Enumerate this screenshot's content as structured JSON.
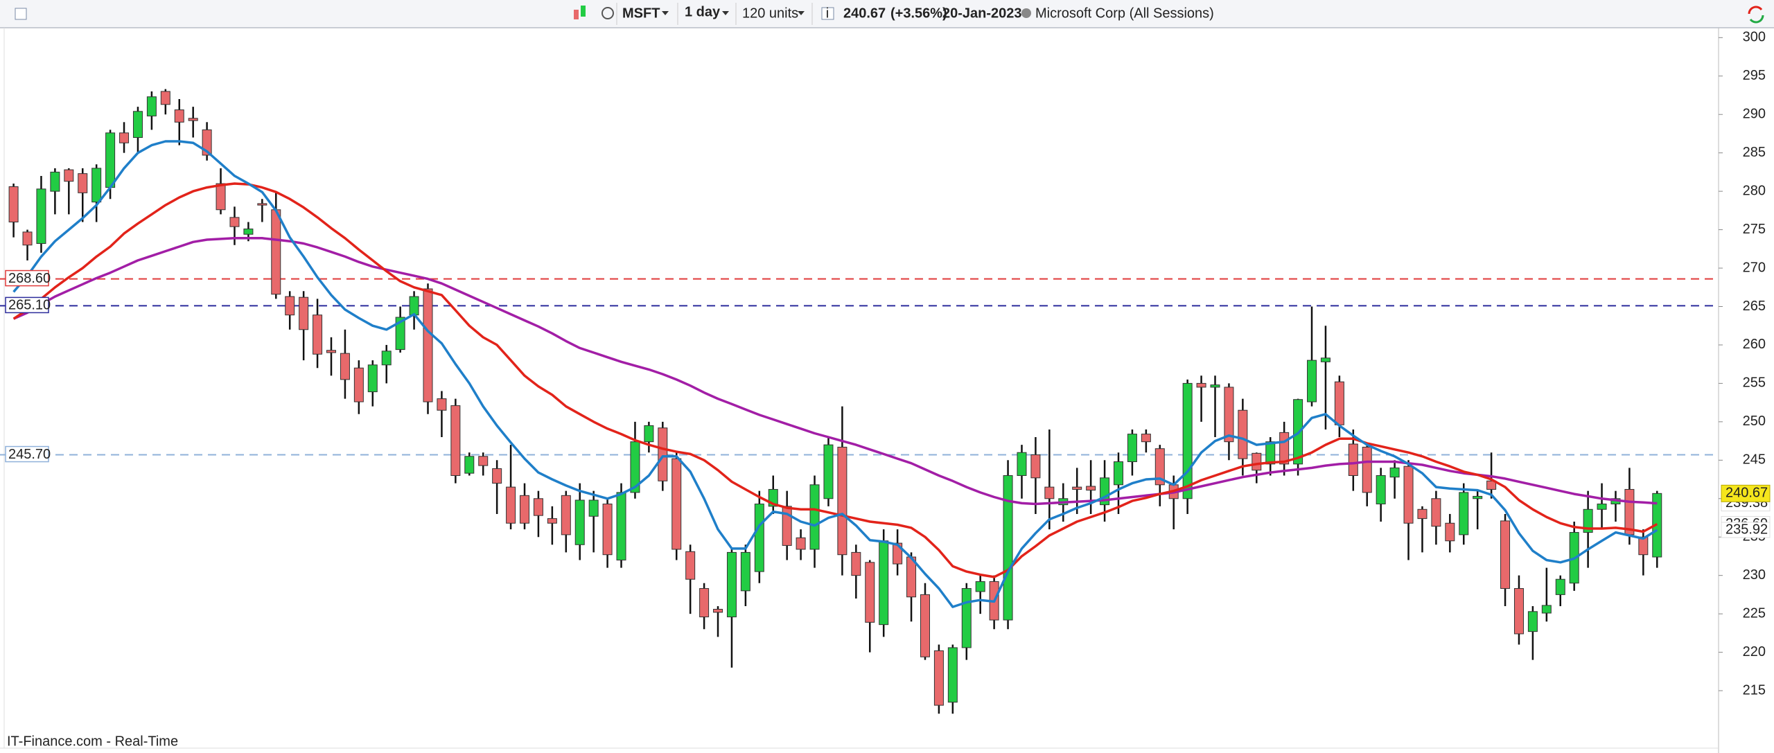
{
  "toolbar": {
    "symbol": "MSFT",
    "interval": "1 day",
    "units": "120 units",
    "change": "(+3.56%)",
    "date": "20-Jan-2023",
    "name": "Microsoft Corp (All Sessions)"
  },
  "footer": "IT-Finance.com - Real-Time",
  "chart_data": {
    "type": "candlestick",
    "open": [
      280.6,
      274.7,
      273.2,
      280,
      282.8,
      282.3,
      278.6,
      280.5,
      287.6,
      287,
      289.8,
      293,
      290.6,
      289.5,
      288,
      281,
      276.6,
      274.4,
      278.4,
      277.6,
      266.3,
      266.2,
      263.9,
      259.3,
      258.9,
      257,
      253.9,
      257.4,
      259.4,
      263.9,
      267.3,
      253,
      252.1,
      243.3,
      245.5,
      243.9,
      241.5,
      240.4,
      240,
      237.4,
      240.4,
      234,
      237.7,
      239.3,
      232,
      240.8,
      247.4,
      249.2,
      245.2,
      233.1,
      228.3,
      225.6,
      224.6,
      228,
      230.5,
      239,
      239,
      234.9,
      233.4,
      240,
      246.7,
      233,
      231.7,
      223.6,
      234.2,
      232.4,
      227.5,
      220.2,
      213.5,
      220.6,
      227.9,
      229.2,
      224.2,
      243,
      245.7,
      241.5,
      239.2,
      241.5,
      241.6,
      239.2,
      241.8,
      244.8,
      248.4,
      246.5,
      241.8,
      240,
      255,
      254.5,
      254.5,
      251.5,
      245.9,
      244.5,
      248.6,
      244.5,
      252.6,
      257.8,
      255.2,
      247.1,
      246.7,
      239.3,
      242.8,
      244.2,
      238.6,
      240,
      236.8,
      235.3,
      240,
      242.3,
      237.1,
      228.3,
      222.7,
      225.1,
      227.5,
      229,
      235.6,
      238.6,
      239.3,
      241.2,
      235,
      232.4
    ],
    "high": [
      281,
      275,
      282,
      283,
      283,
      283,
      283.5,
      288,
      289,
      291,
      293,
      293.3,
      292,
      291,
      289,
      283,
      278,
      276,
      279,
      280,
      267,
      267,
      266,
      261,
      262,
      258,
      258,
      260,
      265,
      267,
      268,
      254,
      253,
      246,
      246,
      245,
      247,
      242,
      241,
      239,
      241,
      242,
      241,
      240,
      242,
      250,
      250,
      250,
      246,
      234,
      229,
      226,
      233.5,
      234,
      241,
      243,
      241,
      236,
      243,
      248,
      252,
      234,
      232,
      236,
      236,
      233,
      229,
      221,
      221,
      229,
      230,
      230,
      245,
      247,
      248,
      249,
      242,
      244,
      245,
      245,
      246,
      249,
      249,
      247,
      243,
      255.5,
      256,
      256,
      255,
      253,
      246,
      248,
      250,
      253,
      265,
      262.5,
      256,
      249,
      247,
      244,
      245,
      245,
      239,
      241,
      238,
      242,
      241,
      246,
      238,
      230,
      226,
      231,
      230,
      237,
      241,
      242,
      241,
      244,
      236,
      241
    ],
    "low": [
      274,
      271,
      272,
      277,
      277,
      276,
      276,
      279,
      285,
      285,
      288,
      290,
      286,
      287,
      284,
      277,
      273,
      273.5,
      276,
      266,
      262,
      258,
      257,
      256,
      253,
      251,
      252,
      255,
      259,
      262,
      251,
      248,
      242,
      243,
      243,
      238,
      236,
      236,
      235,
      234,
      233,
      232,
      233,
      231,
      231,
      240,
      246,
      241,
      232,
      225,
      223,
      222,
      218,
      226,
      229,
      238,
      232,
      232,
      231,
      239,
      230,
      227,
      220,
      222,
      230,
      224,
      219,
      212,
      212,
      219,
      225,
      223,
      223,
      240,
      238,
      236,
      237,
      238,
      238,
      237,
      238,
      243,
      246,
      239,
      236,
      238,
      250,
      248,
      245,
      243,
      242,
      243,
      243,
      243,
      252,
      249,
      248,
      241,
      239,
      237,
      240,
      232,
      233,
      234,
      233,
      234,
      236,
      240,
      226,
      221,
      219,
      224,
      226,
      228,
      231,
      236,
      237,
      234,
      230,
      231
    ],
    "close": [
      276,
      273,
      280.3,
      282.5,
      281.3,
      279.8,
      283,
      287.6,
      286.3,
      290.4,
      292.3,
      291.3,
      289,
      289.2,
      284.7,
      277.6,
      275.4,
      275.1,
      278.2,
      266.6,
      263.9,
      262,
      258.8,
      259,
      255.5,
      252.6,
      257.4,
      259.2,
      263.6,
      266.3,
      252.6,
      251.5,
      243,
      245.5,
      244.3,
      242,
      236.8,
      236.8,
      237.8,
      236.8,
      235.3,
      239.8,
      239.8,
      232.7,
      240.8,
      247.4,
      249.5,
      242.3,
      233.4,
      229.5,
      224.6,
      225.2,
      233,
      233,
      239.3,
      241.2,
      233.9,
      233.4,
      241.8,
      247,
      232.7,
      230,
      223.9,
      234.5,
      231.5,
      227.2,
      219.4,
      213.1,
      220.6,
      228.3,
      229.2,
      224.2,
      243,
      246,
      242.7,
      240,
      240,
      241.2,
      241.1,
      242.7,
      244.8,
      248.4,
      247.4,
      241.8,
      240,
      255,
      254.5,
      254.8,
      247.4,
      245.2,
      243.7,
      247.4,
      244.5,
      252.9,
      258,
      258.3,
      249.6,
      243,
      240.8,
      243,
      244,
      236.8,
      237.4,
      236.4,
      234.5,
      240.8,
      240.3,
      241.2,
      228.3,
      222.4,
      225.3,
      226.1,
      229.5,
      235.6,
      238.6,
      239.3,
      240,
      235.3,
      232.7,
      240.67
    ],
    "up_color": "#22cc44",
    "down_color": "#e8696b",
    "series": [
      {
        "color": "#a21ea6",
        "values": [
          263.4,
          264.2,
          265.3,
          266.3,
          267.1,
          267.9,
          268.7,
          269.4,
          270.2,
          271,
          271.6,
          272.2,
          272.8,
          273.4,
          273.7,
          273.8,
          273.9,
          273.9,
          273.9,
          273.7,
          273.5,
          273.2,
          272.7,
          272.1,
          271.5,
          270.8,
          270.2,
          269.8,
          269.4,
          269,
          268.6,
          268,
          267.2,
          266.4,
          265.6,
          264.8,
          264,
          263.2,
          262.4,
          261.5,
          260.5,
          259.6,
          259,
          258.4,
          257.8,
          257.3,
          256.8,
          256.2,
          255.5,
          254.7,
          253.8,
          253,
          252.3,
          251.6,
          250.9,
          250.3,
          249.7,
          249.1,
          248.5,
          248,
          247.5,
          247,
          246.4,
          245.8,
          245.2,
          244.6,
          243.8,
          243,
          242.3,
          241.5,
          240.8,
          240.2,
          239.7,
          239.4,
          239.3,
          239.4,
          239.5,
          239.6,
          239.7,
          239.8,
          240,
          240.2,
          240.4,
          240.6,
          240.8,
          241.2,
          241.6,
          242,
          242.4,
          242.8,
          243.1,
          243.4,
          243.6,
          243.8,
          244,
          244.3,
          244.5,
          244.6,
          244.8,
          244.8,
          244.8,
          244.6,
          244.4,
          244,
          243.6,
          243.3,
          243.1,
          242.9,
          242.6,
          242.2,
          241.8,
          241.4,
          241,
          240.6,
          240.3,
          240,
          239.8,
          239.6,
          239.5,
          239.38
        ]
      },
      {
        "color": "#e2231a",
        "values": [
          263.4,
          264.6,
          266,
          267.5,
          268.8,
          270,
          271.5,
          272.8,
          274.5,
          275.8,
          277,
          278.2,
          279.2,
          280,
          280.5,
          280.8,
          281,
          280.9,
          280.5,
          279.9,
          279,
          277.9,
          276.6,
          275.2,
          273.9,
          272.4,
          271,
          269.6,
          268.3,
          267.5,
          267,
          266.5,
          264.5,
          262.5,
          261,
          260,
          258,
          256,
          254.6,
          253.5,
          252,
          251,
          250,
          249.1,
          248.4,
          247.6,
          247,
          246.5,
          246.1,
          245.8,
          245,
          243.7,
          242.2,
          241.2,
          240.2,
          239.3,
          238.8,
          238.6,
          238.6,
          238.2,
          237.8,
          237.4,
          237,
          236.8,
          236.6,
          236.2,
          235,
          233.3,
          231.2,
          230.5,
          230.1,
          229.8,
          230.7,
          232.5,
          233.8,
          235.2,
          236.1,
          237,
          237.6,
          238.2,
          238.9,
          239.7,
          240.1,
          240.6,
          241,
          241.6,
          242.4,
          243,
          243.6,
          244.2,
          244.5,
          244.7,
          244.8,
          245.3,
          246,
          247,
          247.8,
          247.8,
          247.2,
          246.8,
          246.4,
          246,
          245.5,
          244.8,
          244.2,
          243.5,
          243.1,
          242.5,
          241.5,
          239.8,
          238.6,
          237.6,
          236.8,
          236.3,
          236.1,
          236.1,
          236.2,
          236,
          235.7,
          236.69
        ]
      },
      {
        "color": "#1f7fc9",
        "values": [
          266.9,
          269,
          271.5,
          273.5,
          275,
          276.5,
          278.2,
          280.5,
          283,
          285,
          286,
          286.5,
          286.5,
          286.3,
          285.2,
          283.6,
          282,
          281,
          279.9,
          277.5,
          274,
          271.5,
          268.8,
          266.5,
          264.6,
          263.5,
          262.5,
          262,
          263,
          264,
          261.8,
          260.2,
          257.5,
          255,
          252,
          249.5,
          247.3,
          245.2,
          243.4,
          242.5,
          241.7,
          241,
          240.5,
          240,
          240.6,
          241.5,
          243,
          245.5,
          245.5,
          243.5,
          240,
          236,
          233.5,
          233.5,
          236.5,
          238.3,
          238,
          237,
          236.5,
          237.5,
          238,
          236.5,
          234.6,
          234.4,
          234,
          232.3,
          230.2,
          228.3,
          225.9,
          226.5,
          226.8,
          226.6,
          230.5,
          233.5,
          235.5,
          237.3,
          238,
          238.8,
          239.4,
          240.2,
          241.2,
          242,
          242.5,
          242.6,
          241.8,
          243.5,
          246,
          247.5,
          248.2,
          247.8,
          247,
          247.2,
          247.4,
          248.5,
          250.5,
          251,
          249.5,
          248.2,
          247,
          246.2,
          245.5,
          244.5,
          243.3,
          241.5,
          241.3,
          241.2,
          241.1,
          240.5,
          238.5,
          235.5,
          233.2,
          232,
          231.7,
          232.2,
          233.4,
          234.5,
          235.6,
          235.2,
          234.8,
          235.92
        ]
      }
    ],
    "hlines": [
      {
        "value": 268.6,
        "label": "268.60",
        "color": "#e03a3a"
      },
      {
        "value": 265.1,
        "label": "265.10",
        "color": "#2c2c9c"
      },
      {
        "value": 245.7,
        "label": "245.70",
        "color": "#8fb1da"
      }
    ],
    "ylim": [
      207.7,
      301.2
    ],
    "yticks": [
      215,
      220,
      225,
      230,
      235,
      240,
      245,
      250,
      255,
      260,
      265,
      270,
      275,
      280,
      285,
      290,
      295,
      300
    ],
    "grid": false
  }
}
